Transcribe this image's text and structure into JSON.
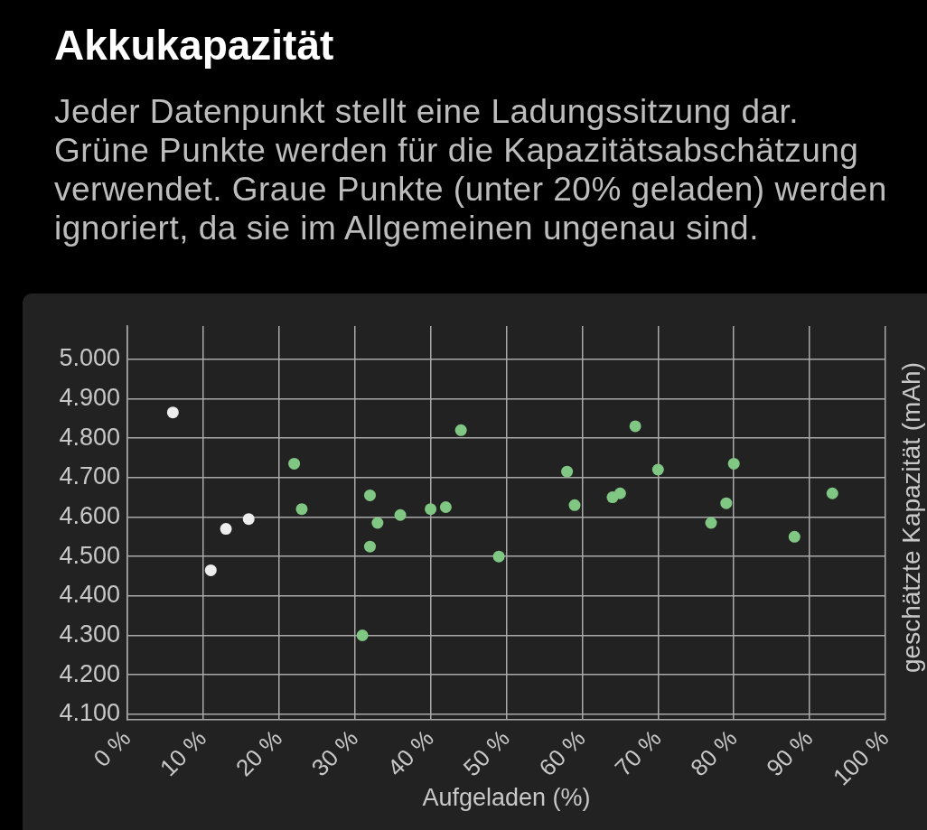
{
  "chart_data": {
    "type": "scatter",
    "title": "Akkukapazität",
    "subtitle": "Jeder Datenpunkt stellt eine Ladungssitzung dar. Grüne Punkte werden für die Kapazitätsabschätzung verwendet. Graue Punkte (unter 20% geladen) werden ignoriert, da sie im Allgemeinen ungenau sind.",
    "xlabel": "Aufgeladen (%)",
    "ylabel": "geschätzte Kapazität (mAh)",
    "series": [
      {
        "color": "#81c784",
        "x": [
          22,
          23,
          31,
          32,
          32,
          33,
          36,
          40,
          42,
          44,
          49,
          58,
          59,
          64,
          65,
          67,
          70,
          77,
          79,
          80,
          88,
          93
        ],
        "values": [
          4735,
          4620,
          4300,
          4655,
          4525,
          4585,
          4605,
          4620,
          4625,
          4820,
          4500,
          4715,
          4630,
          4650,
          4660,
          4830,
          4720,
          4585,
          4635,
          4735,
          4550,
          4660
        ]
      },
      {
        "color": "#eeeeee",
        "x": [
          6,
          11,
          13,
          16
        ],
        "values": [
          4865,
          4465,
          4570,
          4595
        ]
      }
    ],
    "xlim": [
      0,
      100
    ],
    "xticks": [
      {
        "value": 0,
        "label": "0 %"
      },
      {
        "value": 10,
        "label": "10 %"
      },
      {
        "value": 20,
        "label": "20 %"
      },
      {
        "value": 30,
        "label": "30 %"
      },
      {
        "value": 40,
        "label": "40 %"
      },
      {
        "value": 50,
        "label": "50 %"
      },
      {
        "value": 60,
        "label": "60 %"
      },
      {
        "value": 70,
        "label": "70 %"
      },
      {
        "value": 80,
        "label": "80 %"
      },
      {
        "value": 90,
        "label": "90 %"
      },
      {
        "value": 100,
        "label": "100 %"
      }
    ],
    "ylim": [
      4086,
      5084
    ],
    "yticks": [
      {
        "value": 4100,
        "label": "4.100"
      },
      {
        "value": 4200,
        "label": "4.200"
      },
      {
        "value": 4300,
        "label": "4.300"
      },
      {
        "value": 4400,
        "label": "4.400"
      },
      {
        "value": 4500,
        "label": "4.500"
      },
      {
        "value": 4600,
        "label": "4.600"
      },
      {
        "value": 4700,
        "label": "4.700"
      },
      {
        "value": 4800,
        "label": "4.800"
      },
      {
        "value": 4900,
        "label": "4.900"
      },
      {
        "value": 5000,
        "label": "5.000"
      }
    ],
    "grid": true,
    "marker": "circle"
  }
}
